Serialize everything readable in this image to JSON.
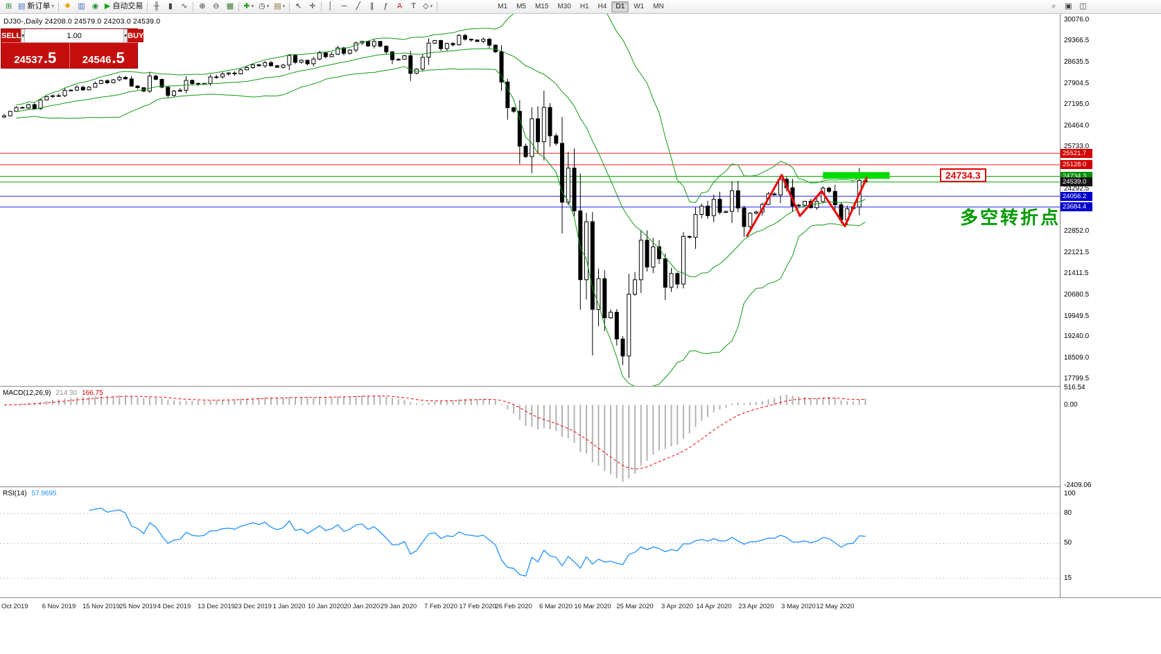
{
  "window": {
    "ohlc_line": "DJ30-,Daily  24208.0 24579.0 24203.0 24539.0"
  },
  "toolbar": {
    "groups": [
      {
        "items": [
          {
            "type": "icon",
            "name": "new-chart-icon",
            "glyph": "⊞",
            "color": "#2e8b3a"
          },
          {
            "type": "text-button",
            "name": "new-order-button",
            "icon_glyph": "▤",
            "icon_color": "#4a6fc4",
            "label": "新订单",
            "caret": true
          }
        ]
      },
      {
        "items": [
          {
            "type": "icon",
            "name": "lightbulb-icon",
            "glyph": "✹",
            "color": "#e8a400"
          },
          {
            "type": "icon",
            "name": "chart-profiles-icon",
            "glyph": "▥",
            "color": "#4a6fc4"
          },
          {
            "type": "icon",
            "name": "info-icon",
            "glyph": "◉",
            "color": "#2e8b3a"
          },
          {
            "type": "text-button",
            "name": "autotrade-button",
            "icon_glyph": "▶",
            "icon_color": "#17a317",
            "label": "自动交易"
          }
        ]
      },
      {
        "items": [
          {
            "type": "icon",
            "name": "bar-chart-icon",
            "glyph": "╫",
            "color": "#444444"
          },
          {
            "type": "icon",
            "name": "candlestick-chart-icon",
            "glyph": "▮",
            "color": "#444444"
          },
          {
            "type": "icon",
            "name": "line-chart-icon",
            "glyph": "∿",
            "color": "#444444"
          }
        ]
      },
      {
        "items": [
          {
            "type": "icon",
            "name": "zoom-in-icon",
            "glyph": "⊕",
            "color": "#444444"
          },
          {
            "type": "icon",
            "name": "zoom-out-icon",
            "glyph": "⊖",
            "color": "#444444"
          },
          {
            "type": "icon",
            "name": "tile-windows-icon",
            "glyph": "▦",
            "color": "#3a7a3a"
          }
        ]
      },
      {
        "items": [
          {
            "type": "icon",
            "name": "indicators-add-icon",
            "glyph": "✚",
            "color": "#17a317",
            "caret": true
          },
          {
            "type": "icon",
            "name": "periods-clock-icon",
            "glyph": "◷",
            "color": "#444444",
            "caret": true
          },
          {
            "type": "icon",
            "name": "templates-icon",
            "glyph": "▤",
            "color": "#8a6f3a",
            "caret": true
          }
        ]
      },
      {
        "items": [
          {
            "type": "icon",
            "name": "cursor-icon",
            "glyph": "↖",
            "color": "#333333"
          },
          {
            "type": "icon",
            "name": "crosshair-icon",
            "glyph": "✛",
            "color": "#333333"
          }
        ]
      },
      {
        "items": [
          {
            "type": "icon",
            "name": "vertical-line-icon",
            "glyph": "│",
            "color": "#333333"
          },
          {
            "type": "icon",
            "name": "horizontal-line-icon",
            "glyph": "─",
            "color": "#333333"
          },
          {
            "type": "icon",
            "name": "trendline-icon",
            "glyph": "╱",
            "color": "#333333"
          },
          {
            "type": "icon",
            "name": "channel-icon",
            "glyph": "∥",
            "color": "#333333"
          },
          {
            "type": "icon",
            "name": "fibonacci-icon",
            "glyph": "ƒ",
            "color": "#333333"
          },
          {
            "type": "icon",
            "name": "text-icon",
            "glyph": "A",
            "color": "#b22222"
          },
          {
            "type": "icon",
            "name": "text-label-icon",
            "glyph": "T",
            "color": "#333333"
          },
          {
            "type": "icon",
            "name": "shapes-icon",
            "glyph": "◇",
            "color": "#333333",
            "caret": true
          }
        ]
      }
    ],
    "timeframes": [
      "M1",
      "M5",
      "M15",
      "M30",
      "H1",
      "H4",
      "D1",
      "W1",
      "MN"
    ],
    "active_timeframe": "D1",
    "right_icons": [
      {
        "name": "search-icon",
        "glyph": "⌕"
      },
      {
        "name": "new-window-icon",
        "glyph": "▣"
      },
      {
        "name": "arrange-windows-icon",
        "glyph": "◫"
      }
    ]
  },
  "trade_panel": {
    "sell_label": "SELL",
    "buy_label": "BUY",
    "volume": "1.00",
    "spin_glyph": "▾",
    "bid_main": "24537",
    "bid_pip": ".5",
    "ask_main": "24546",
    "ask_pip": ".5"
  },
  "chart_data": {
    "type": "candlestick",
    "symbol": "DJ30-",
    "timeframe": "Daily",
    "ohlc": {
      "open": "24208.0",
      "high": "24579.0",
      "low": "24203.0",
      "close": "24539.0"
    },
    "y_range": [
      17570,
      30290
    ],
    "first_open": 26760,
    "closes": [
      26805,
      26958,
      27090,
      27071,
      27186,
      27046,
      27347,
      27462,
      27493,
      27492,
      27675,
      27681,
      27781,
      27691,
      27783,
      27910,
      28004,
      27935,
      28036,
      28121,
      28066,
      27821,
      27766,
      27649,
      28164,
      28051,
      27783,
      27502,
      27649,
      27677,
      28015,
      27909,
      27881,
      27911,
      28132,
      28135,
      28235,
      28267,
      28239,
      28376,
      28455,
      28551,
      28515,
      28621,
      28515,
      28462,
      28538,
      28868,
      28634,
      28703,
      28583,
      28745,
      28956,
      28823,
      28907,
      29127,
      28939,
      29054,
      29297,
      29348,
      29196,
      29348,
      29186,
      28989,
      28722,
      28734,
      28859,
      28256,
      28399,
      28807,
      29290,
      29379,
      29102,
      29276,
      29232,
      29551,
      29423,
      29398,
      29348,
      29420,
      29219,
      28992,
      27960,
      27081,
      26957,
      25766,
      25409,
      26703,
      25917,
      27090,
      26121,
      25864,
      23851,
      25018,
      23553,
      21200,
      23185,
      20188,
      21237,
      19898,
      20087,
      19173,
      18591,
      20704,
      21200,
      22552,
      21636,
      22327,
      21917,
      20943,
      21413,
      21052,
      22679,
      22653,
      23433,
      23719,
      23390,
      23949,
      23504,
      23537,
      24242,
      23650,
      23018,
      23475,
      23515,
      23775,
      24133,
      24101,
      24633,
      24345,
      23723,
      23749,
      23883,
      23664,
      23875,
      24331,
      24221,
      23764,
      23247,
      23625,
      23685,
      24597,
      24539
    ],
    "price_ticks": [
      "30076.0",
      "29366.5",
      "28635.5",
      "27904.5",
      "27195.0",
      "26464.0",
      "25733.0",
      "24292.5",
      "22852.0",
      "22121.5",
      "21411.5",
      "20680.5",
      "19949.5",
      "19240.0",
      "18509.0",
      "17799.5"
    ],
    "levels": [
      {
        "value": 25521.7,
        "label": "25521.7",
        "line_color": "#ff2020",
        "tag_bg": "#d40000"
      },
      {
        "value": 25128.0,
        "label": "25128.0",
        "line_color": "#ff2020",
        "tag_bg": "#d40000"
      },
      {
        "value": 24734.3,
        "label": "24734.3",
        "line_color": "#00a800",
        "tag_bg": "#009000"
      },
      {
        "value": 24539.0,
        "label": "24539.0",
        "line_color": "#00a800",
        "tag_bg": "#141414"
      },
      {
        "value": 24056.2,
        "label": "24056.2",
        "line_color": "#2222ff",
        "tag_bg": "#0000cc"
      },
      {
        "value": 23684.4,
        "label": "23684.4",
        "line_color": "#2222ff",
        "tag_bg": "#0000cc"
      }
    ],
    "date_labels": [
      {
        "label": "Oct 2019",
        "i": 0,
        "align": "left"
      },
      {
        "label": "6 Nov 2019",
        "i": 9
      },
      {
        "label": "15 Nov 2019",
        "i": 16
      },
      {
        "label": "25 Nov 2019",
        "i": 22
      },
      {
        "label": "4 Dec 2019",
        "i": 28
      },
      {
        "label": "13 Dec 2019",
        "i": 35
      },
      {
        "label": "23 Dec 2019",
        "i": 41
      },
      {
        "label": "1 Jan 2020",
        "i": 47
      },
      {
        "label": "10 Jan 2020",
        "i": 53
      },
      {
        "label": "20 Jan 2020",
        "i": 59
      },
      {
        "label": "29 Jan 2020",
        "i": 65
      },
      {
        "label": "7 Feb 2020",
        "i": 72
      },
      {
        "label": "17 Feb 2020",
        "i": 78
      },
      {
        "label": "26 Feb 2020",
        "i": 84
      },
      {
        "label": "6 Mar 2020",
        "i": 91
      },
      {
        "label": "16 Mar 2020",
        "i": 97
      },
      {
        "label": "25 Mar 2020",
        "i": 104
      },
      {
        "label": "3 Apr 2020",
        "i": 111
      },
      {
        "label": "14 Apr 2020",
        "i": 117
      },
      {
        "label": "23 Apr 2020",
        "i": 124
      },
      {
        "label": "3 May 2020",
        "i": 131
      },
      {
        "label": "12 May 2020",
        "i": 137
      }
    ],
    "bollinger": {
      "period": 20,
      "deviation": 2,
      "color": "#119911"
    },
    "annotations": {
      "zigzag": {
        "color": "#ee0000",
        "points": [
          {
            "i": 122.5,
            "p": 22700
          },
          {
            "i": 128.2,
            "p": 24780
          },
          {
            "i": 131.2,
            "p": 23380
          },
          {
            "i": 134.8,
            "p": 24230
          },
          {
            "i": 138.6,
            "p": 23030
          },
          {
            "i": 142.2,
            "p": 24680
          }
        ]
      },
      "highlight_rect": {
        "i1": 135,
        "i2": 146,
        "p_top": 24880,
        "p_bottom": 24650,
        "color": "#00dc00"
      },
      "price_callout": {
        "text": "24734.3",
        "x": 1356,
        "y": 243,
        "color": "#e00000"
      },
      "cn_note": {
        "text": "多空转折点",
        "x": 1385,
        "y": 294,
        "color": "#009900"
      }
    },
    "indicators": {
      "macd": {
        "name": "MACD(12,26,9)",
        "value_main": "214.30",
        "value_signal": "166.75",
        "params": [
          12,
          26,
          9
        ],
        "axis_labels": [
          {
            "text": "516.54",
            "v": 516.54
          },
          {
            "text": "0.00",
            "v": 0
          },
          {
            "text": "-2409.06",
            "v": -2409.06
          }
        ],
        "range": [
          530,
          -2440
        ],
        "hist_color": "#b2b2b2",
        "signal_color": "#ff0000"
      },
      "rsi": {
        "name": "RSI(14)",
        "value": "57.9695",
        "period": 14,
        "levels": [
          80,
          50,
          15
        ],
        "axis_labels": [
          {
            "text": "100",
            "v": 100
          },
          {
            "text": "80",
            "v": 80
          },
          {
            "text": "50",
            "v": 50
          },
          {
            "text": "15",
            "v": 15
          }
        ],
        "range": [
          106,
          -4
        ],
        "color": "#1e90ff"
      }
    }
  }
}
